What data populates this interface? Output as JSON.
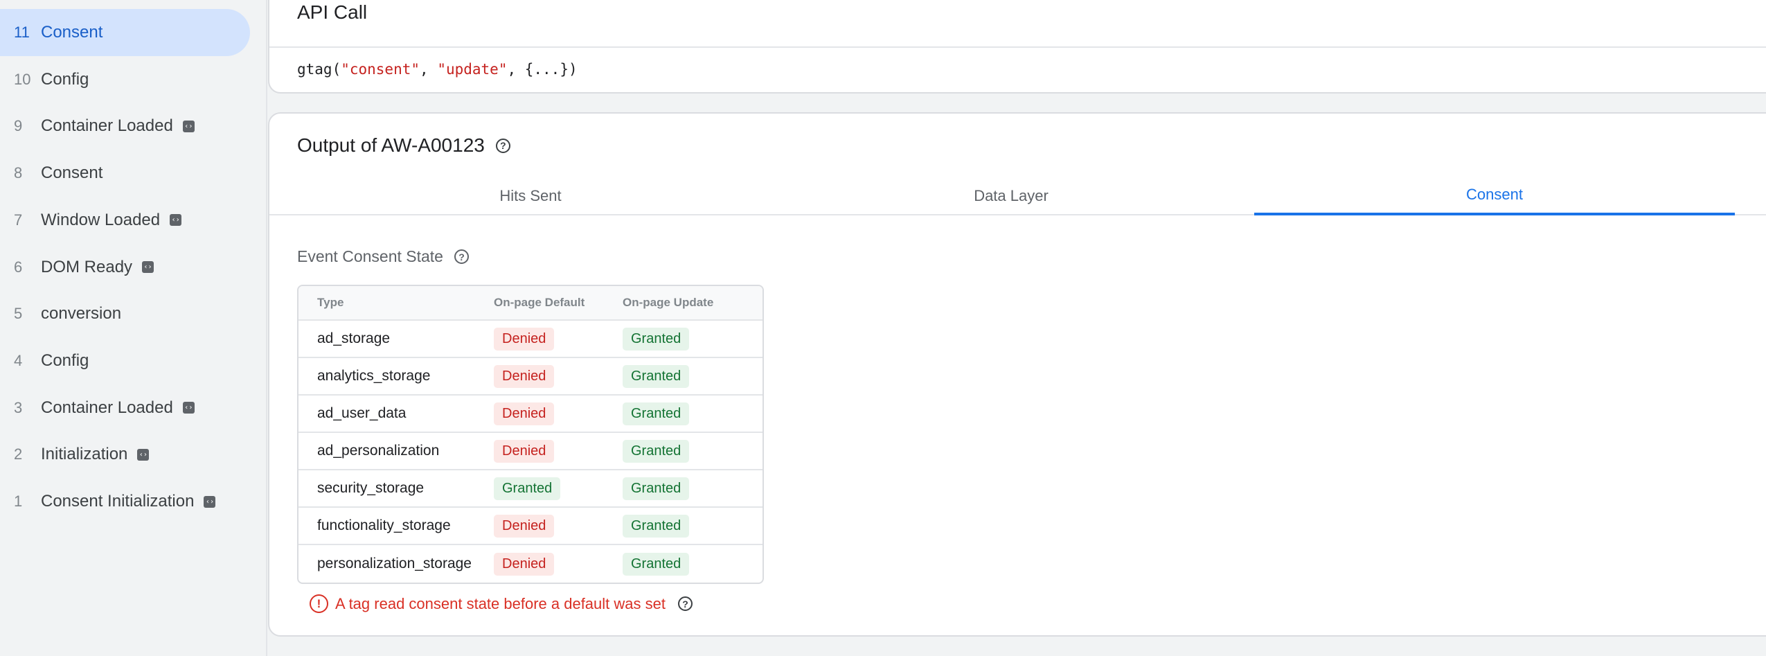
{
  "sidebar": {
    "items": [
      {
        "num": "11",
        "label": "Consent",
        "selected": true,
        "badge": false
      },
      {
        "num": "10",
        "label": "Config",
        "badge": false
      },
      {
        "num": "9",
        "label": "Container Loaded",
        "badge": true
      },
      {
        "num": "8",
        "label": "Consent",
        "badge": false
      },
      {
        "num": "7",
        "label": "Window Loaded",
        "badge": true
      },
      {
        "num": "6",
        "label": "DOM Ready",
        "badge": true
      },
      {
        "num": "5",
        "label": "conversion",
        "badge": false
      },
      {
        "num": "4",
        "label": "Config",
        "badge": false
      },
      {
        "num": "3",
        "label": "Container Loaded",
        "badge": true
      },
      {
        "num": "2",
        "label": "Initialization",
        "badge": true
      },
      {
        "num": "1",
        "label": "Consent Initialization",
        "badge": true
      }
    ],
    "badge_icon": "code-icon"
  },
  "api_call": {
    "title": "API Call",
    "code": {
      "fn": "gtag(",
      "arg1": "\"consent\"",
      "sep1": ", ",
      "arg2": "\"update\"",
      "rest": ", {...})"
    }
  },
  "output": {
    "title": "Output of AW-A00123",
    "help_icon": "help-circle-icon",
    "tabs": [
      {
        "label": "Hits Sent"
      },
      {
        "label": "Data Layer"
      },
      {
        "label": "Consent",
        "active": true
      }
    ],
    "section_title": "Event Consent State",
    "table": {
      "headers": [
        "Type",
        "On-page Default",
        "On-page Update"
      ],
      "rows": [
        [
          "ad_storage",
          "Denied",
          "Granted"
        ],
        [
          "analytics_storage",
          "Denied",
          "Granted"
        ],
        [
          "ad_user_data",
          "Denied",
          "Granted"
        ],
        [
          "ad_personalization",
          "Denied",
          "Granted"
        ],
        [
          "security_storage",
          "Granted",
          "Granted"
        ],
        [
          "functionality_storage",
          "Denied",
          "Granted"
        ],
        [
          "personalization_storage",
          "Denied",
          "Granted"
        ]
      ]
    },
    "warning": "A tag read consent state before a default was set"
  },
  "colors": {
    "accent": "#1a73e8",
    "denied": "#c5221f",
    "granted": "#137333",
    "selected_bg": "#d3e3fd"
  }
}
